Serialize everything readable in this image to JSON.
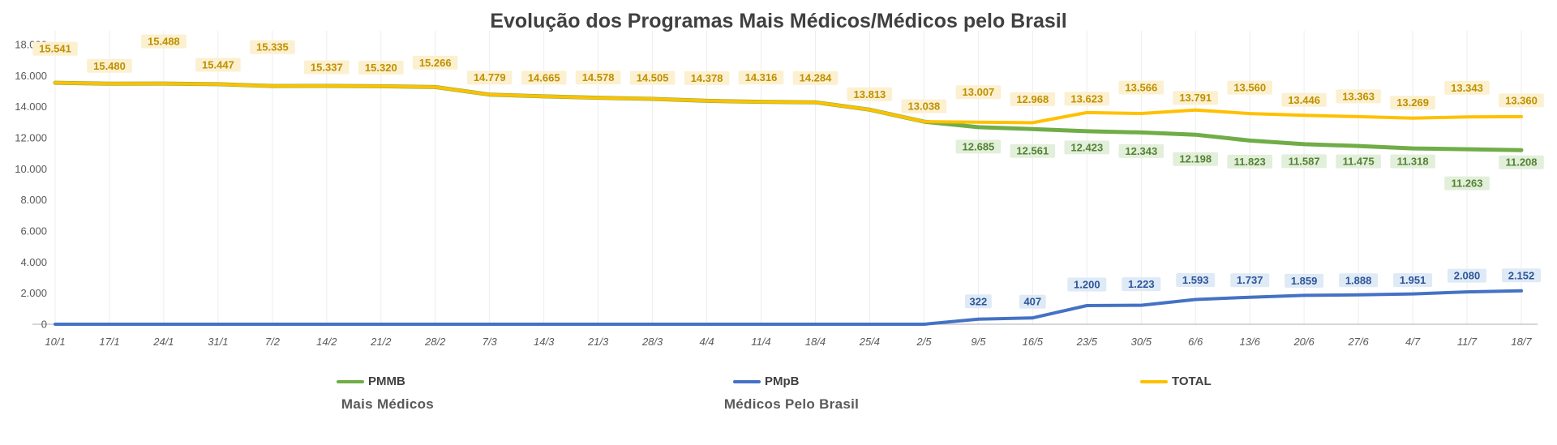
{
  "title": "Evolução dos Programas Mais Médicos/Médicos pelo Brasil",
  "legend": {
    "items": [
      {
        "label": "PMMB",
        "sublabel": "Mais Médicos",
        "color": "#70AD47"
      },
      {
        "label": "PMpB",
        "sublabel": "Médicos Pelo Brasil",
        "color": "#4472C4"
      },
      {
        "label": "TOTAL",
        "sublabel": "",
        "color": "#FFC000"
      }
    ]
  },
  "axis": {
    "y_ticks": [
      "18.000",
      "16.000",
      "14.000",
      "12.000",
      "10.000",
      "8.000",
      "6.000",
      "4.000",
      "2.000",
      "0"
    ]
  },
  "chart_data": {
    "type": "line",
    "title": "Evolução dos Programas Mais Médicos/Médicos pelo Brasil",
    "xlabel": "",
    "ylabel": "",
    "ylim": [
      0,
      18000
    ],
    "y_tick_step": 2000,
    "grid": "faint-vertical",
    "legend_position": "bottom",
    "categories": [
      "10/1",
      "17/1",
      "24/1",
      "31/1",
      "7/2",
      "14/2",
      "21/2",
      "28/2",
      "7/3",
      "14/3",
      "21/3",
      "28/3",
      "4/4",
      "11/4",
      "18/4",
      "25/4",
      "2/5",
      "9/5",
      "16/5",
      "23/5",
      "30/5",
      "6/6",
      "13/6",
      "20/6",
      "27/6",
      "4/7",
      "11/7",
      "18/7"
    ],
    "series": [
      {
        "name": "PMMB",
        "color": "#70AD47",
        "label_text_color": "#548235",
        "label_bg": "#E2EFDA",
        "values": [
          15541,
          15480,
          15488,
          15447,
          15335,
          15337,
          15320,
          15266,
          14779,
          14665,
          14578,
          14505,
          14378,
          14316,
          14284,
          13813,
          13038,
          12685,
          12561,
          12423,
          12343,
          12198,
          11823,
          11587,
          11475,
          11318,
          11263,
          11208
        ],
        "labels": [
          null,
          null,
          null,
          null,
          null,
          null,
          null,
          null,
          null,
          null,
          null,
          null,
          null,
          null,
          null,
          null,
          null,
          "12.685",
          "12.561",
          "12.423",
          "12.343",
          "12.198",
          "11.823",
          "11.587",
          "11.475",
          "11.318",
          "11.263",
          "11.208"
        ],
        "label_dy": [
          null,
          null,
          null,
          null,
          null,
          null,
          null,
          null,
          null,
          null,
          null,
          null,
          null,
          null,
          null,
          null,
          null,
          24,
          27,
          20,
          23,
          30,
          26,
          21,
          19,
          16,
          42,
          15
        ]
      },
      {
        "name": "PMpB",
        "color": "#4472C4",
        "label_text_color": "#2F5597",
        "label_bg": "#DEEAF6",
        "values": [
          0,
          0,
          0,
          0,
          0,
          0,
          0,
          0,
          0,
          0,
          0,
          0,
          0,
          0,
          0,
          0,
          0,
          322,
          407,
          1200,
          1223,
          1593,
          1737,
          1859,
          1888,
          1951,
          2080,
          2152
        ],
        "labels": [
          null,
          null,
          null,
          null,
          null,
          null,
          null,
          null,
          null,
          null,
          null,
          null,
          null,
          null,
          null,
          null,
          null,
          "322",
          "407",
          "1.200",
          "1.223",
          "1.593",
          "1.737",
          "1.859",
          "1.888",
          "1.951",
          "2.080",
          "2.152"
        ],
        "label_dy": [
          null,
          null,
          null,
          null,
          null,
          null,
          null,
          null,
          null,
          null,
          null,
          null,
          null,
          null,
          null,
          null,
          null,
          -22,
          -20,
          -26,
          -26,
          -24,
          -21,
          -18,
          -18,
          -17,
          -20,
          -19
        ]
      },
      {
        "name": "TOTAL",
        "color": "#FFC000",
        "label_text_color": "#BF9000",
        "label_bg": "#FBF0D0",
        "values": [
          15541,
          15480,
          15488,
          15447,
          15335,
          15337,
          15320,
          15266,
          14779,
          14665,
          14578,
          14505,
          14378,
          14316,
          14284,
          13813,
          13038,
          13007,
          12968,
          13623,
          13566,
          13791,
          13560,
          13446,
          13363,
          13269,
          13343,
          13360
        ],
        "labels": [
          "15.541",
          "15.480",
          "15.488",
          "15.447",
          "15.335",
          "15.337",
          "15.320",
          "15.266",
          "14.779",
          "14.665",
          "14.578",
          "14.505",
          "14.378",
          "14.316",
          "14.284",
          "13.813",
          "13.038",
          "13.007",
          "12.968",
          "13.623",
          "13.566",
          "13.791",
          "13.560",
          "13.446",
          "13.363",
          "13.269",
          "13.343",
          "13.360"
        ],
        "label_dy": [
          -42,
          -22,
          -52,
          -24,
          -48,
          -23,
          -23,
          -30,
          -21,
          -23,
          -25,
          -26,
          -28,
          -30,
          -30,
          -19,
          -19,
          -37,
          -29,
          -17,
          -32,
          -15,
          -32,
          -19,
          -25,
          -19,
          -36,
          -20
        ]
      }
    ]
  }
}
